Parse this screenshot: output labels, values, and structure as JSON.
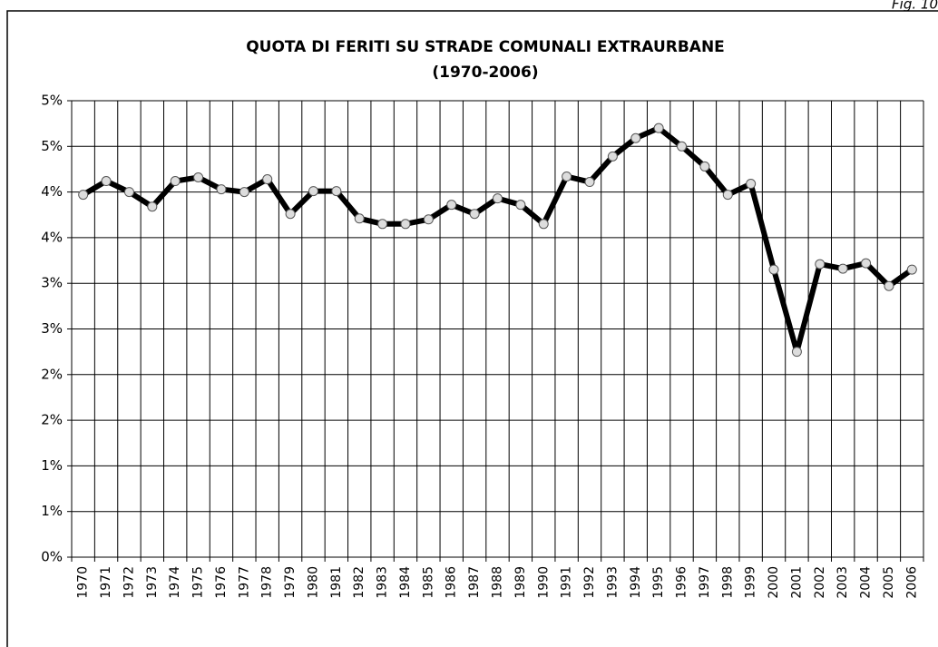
{
  "chart_data": {
    "type": "line",
    "title": "QUOTA DI  FERITI SU STRADE COMUNALI EXTRAURBANE",
    "subtitle": "(1970-2006)",
    "annotation": "Fig. 10",
    "categories": [
      "1970",
      "1971",
      "1972",
      "1973",
      "1974",
      "1975",
      "1976",
      "1977",
      "1978",
      "1979",
      "1980",
      "1981",
      "1982",
      "1983",
      "1984",
      "1985",
      "1986",
      "1987",
      "1988",
      "1989",
      "1990",
      "1991",
      "1992",
      "1993",
      "1994",
      "1995",
      "1996",
      "1997",
      "1998",
      "1999",
      "2000",
      "2001",
      "2002",
      "2003",
      "2004",
      "2005",
      "2006"
    ],
    "values": [
      3.97,
      4.12,
      4.0,
      3.84,
      4.12,
      4.16,
      4.03,
      4.0,
      4.14,
      3.76,
      4.01,
      4.01,
      3.71,
      3.65,
      3.65,
      3.7,
      3.86,
      3.76,
      3.93,
      3.86,
      3.65,
      4.17,
      4.11,
      4.39,
      4.59,
      4.7,
      4.5,
      4.28,
      3.97,
      4.09,
      3.15,
      2.25,
      3.21,
      3.16,
      3.22,
      2.97,
      3.15
    ],
    "color": "#000000",
    "ylim": [
      0,
      5
    ],
    "yticks": [
      {
        "value": 0,
        "label": "0%"
      },
      {
        "value": 0.5,
        "label": "1%"
      },
      {
        "value": 1,
        "label": "1%"
      },
      {
        "value": 1.5,
        "label": "2%"
      },
      {
        "value": 2,
        "label": "2%"
      },
      {
        "value": 2.5,
        "label": "3%"
      },
      {
        "value": 3,
        "label": "3%"
      },
      {
        "value": 3.5,
        "label": "4%"
      },
      {
        "value": 4,
        "label": "4%"
      },
      {
        "value": 4.5,
        "label": "5%"
      },
      {
        "value": 5,
        "label": "5%"
      }
    ],
    "grid": true
  }
}
